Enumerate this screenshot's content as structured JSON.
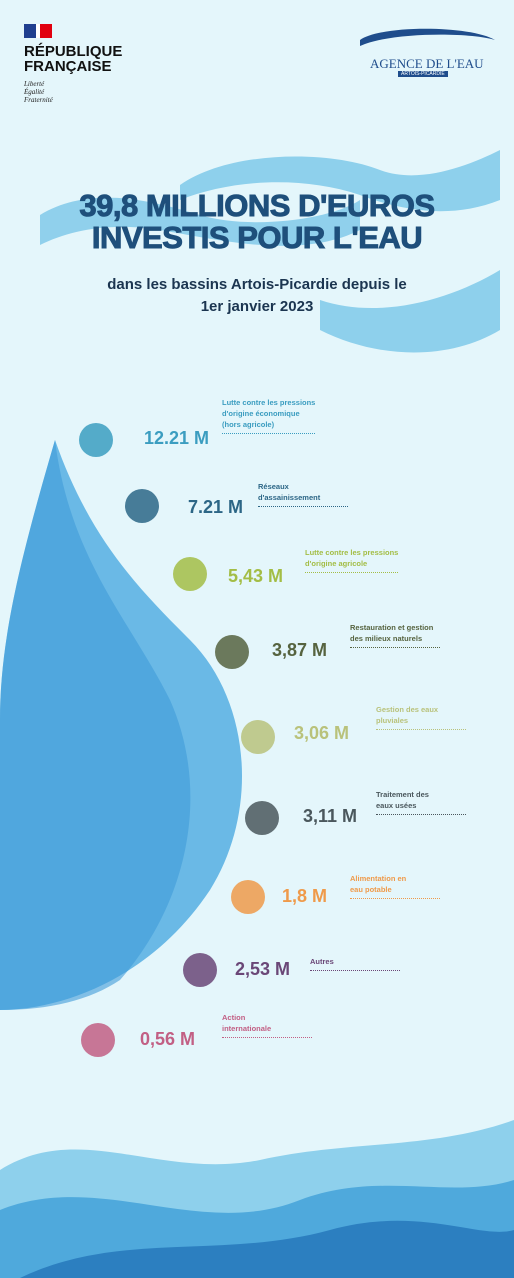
{
  "header": {
    "republique": [
      "RÉPUBLIQUE",
      "FRANÇAISE"
    ],
    "motto": [
      "Liberté",
      "Égalité",
      "Fraternité"
    ],
    "agency": "AGENCE DE L'EAU",
    "agency_region": "ARTOIS-PICARDIE"
  },
  "title": [
    "39,8 MILLIONS D'EUROS",
    "INVESTIS POUR L'EAU"
  ],
  "subtitle": [
    "dans les bassins Artois-Picardie depuis le",
    "1er janvier 2023"
  ],
  "items": [
    {
      "amount": "12.21 M",
      "label": [
        "Lutte contre les pressions",
        "d'origine économique",
        "(hors agricole)"
      ],
      "color": "#3b9dc0"
    },
    {
      "amount": "7.21 M",
      "label": [
        "Réseaux",
        "d'assainissement"
      ],
      "color": "#2c6686"
    },
    {
      "amount": "5,43 M",
      "label": [
        "Lutte contre les pressions",
        "d'origine agricole"
      ],
      "color": "#a3bd45"
    },
    {
      "amount": "3,87 M",
      "label": [
        "Restauration et gestion",
        "des milieux naturels"
      ],
      "color": "#56633f"
    },
    {
      "amount": "3,06 M",
      "label": [
        "Gestion des eaux",
        "pluviales"
      ],
      "color": "#b9c27b"
    },
    {
      "amount": "3,11 M",
      "label": [
        "Traitement des",
        "eaux usées"
      ],
      "color": "#4a575c"
    },
    {
      "amount": "1,8 M",
      "label": [
        "Alimentation en",
        "eau potable"
      ],
      "color": "#ef9a4a"
    },
    {
      "amount": "2,53 M",
      "label": [
        "Autres"
      ],
      "color": "#6a4777"
    },
    {
      "amount": "0,56 M",
      "label": [
        "Action",
        "internationale"
      ],
      "color": "#c25f84"
    }
  ]
}
